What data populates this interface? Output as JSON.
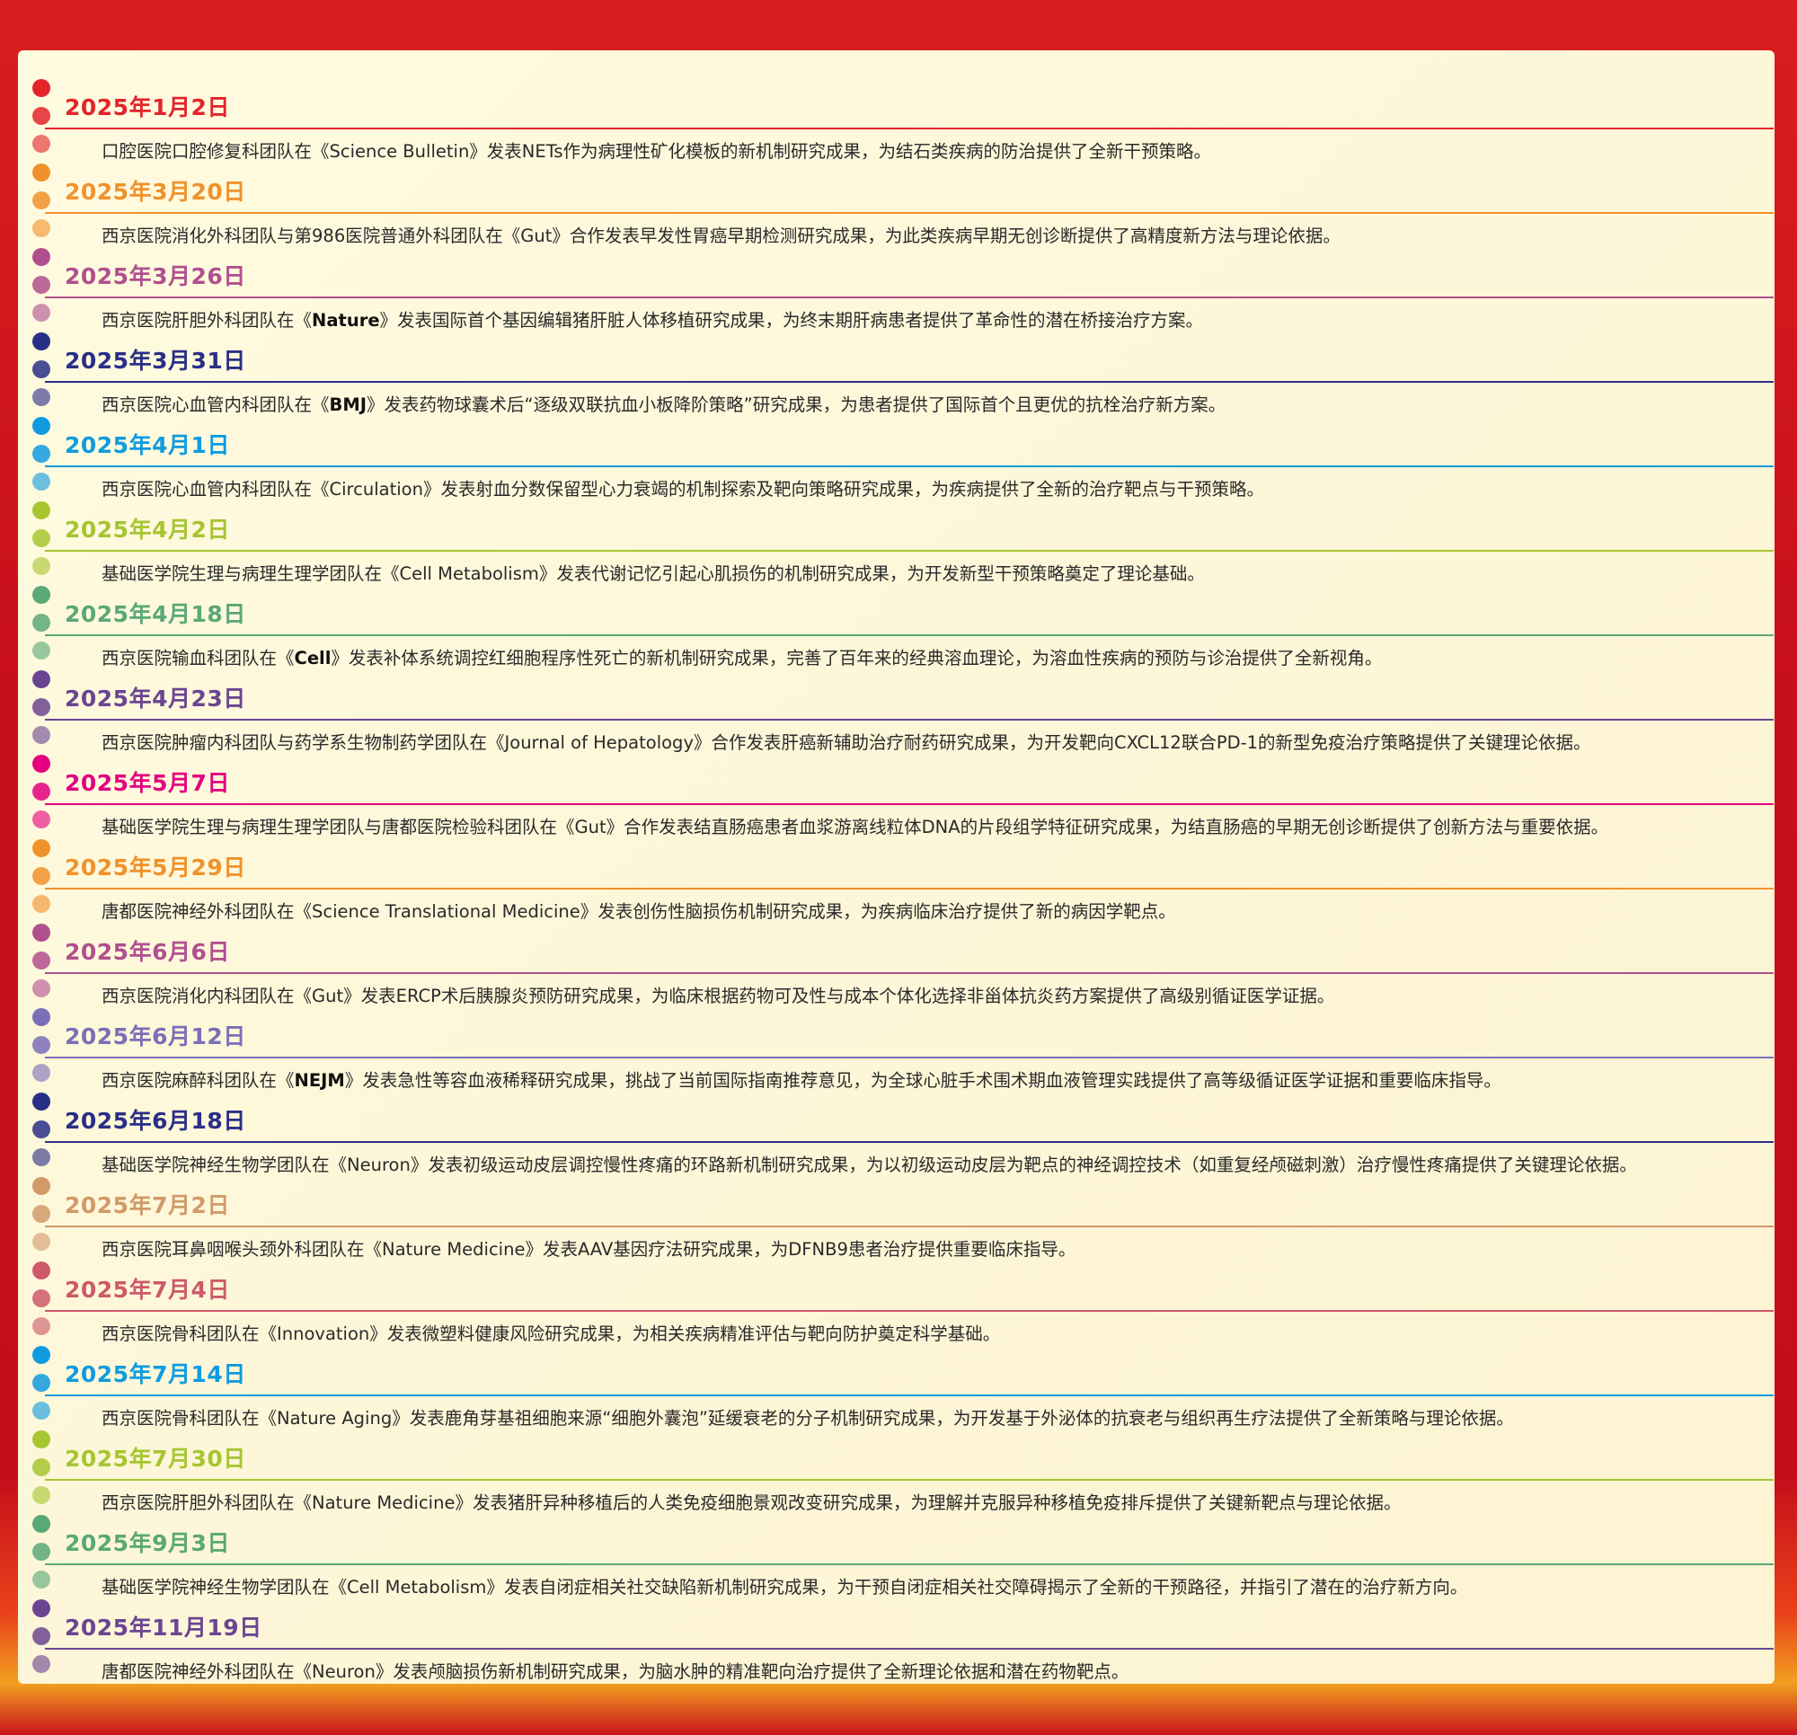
{
  "entries": [
    {
      "date": "2025年1月2日",
      "color": "#e3242b",
      "pre": "口腔医院口腔修复科团队在《",
      "journal": "Science Bulletin",
      "bold": false,
      "post": "》发表NETs作为病理性矿化模板的新机制研究成果，为结石类疾病的防治提供了全新干预策略。"
    },
    {
      "date": "2025年3月20日",
      "color": "#f0922b",
      "pre": "西京医院消化外科团队与第986医院普通外科团队在《",
      "journal": "Gut",
      "bold": false,
      "post": "》合作发表早发性胃癌早期检测研究成果，为此类疾病早期无创诊断提供了高精度新方法与理论依据。"
    },
    {
      "date": "2025年3月26日",
      "color": "#b0508e",
      "pre": "西京医院肝胆外科团队在《",
      "journal": "Nature",
      "bold": true,
      "post": "》发表国际首个基因编辑猪肝脏人体移植研究成果，为终末期肝病患者提供了革命性的潜在桥接治疗方案。"
    },
    {
      "date": "2025年3月31日",
      "color": "#2a2f86",
      "pre": "西京医院心血管内科团队在《",
      "journal": "BMJ",
      "bold": true,
      "post": "》发表药物球囊术后“逐级双联抗血小板降阶策略”研究成果，为患者提供了国际首个且更优的抗栓治疗新方案。"
    },
    {
      "date": "2025年4月1日",
      "color": "#109be0",
      "pre": "西京医院心血管内科团队在《",
      "journal": "Circulation",
      "bold": false,
      "post": "》发表射血分数保留型心力衰竭的机制探索及靶向策略研究成果，为疾病提供了全新的治疗靶点与干预策略。"
    },
    {
      "date": "2025年4月2日",
      "color": "#a6c531",
      "pre": "基础医学院生理与病理生理学团队在《",
      "journal": "Cell Metabolism",
      "bold": false,
      "post": "》发表代谢记忆引起心肌损伤的机制研究成果，为开发新型干预策略奠定了理论基础。"
    },
    {
      "date": "2025年4月18日",
      "color": "#5aa876",
      "pre": "西京医院输血科团队在《",
      "journal": "Cell",
      "bold": true,
      "post": "》发表补体系统调控红细胞程序性死亡的新机制研究成果，完善了百年来的经典溶血理论，为溶血性疾病的预防与诊治提供了全新视角。"
    },
    {
      "date": "2025年4月23日",
      "color": "#6b4591",
      "pre": "西京医院肿瘤内科团队与药学系生物制药学团队在《",
      "journal": "Journal of Hepatology",
      "bold": false,
      "post": "》合作发表肝癌新辅助治疗耐药研究成果，为开发靶向CXCL12联合PD-1的新型免疫治疗策略提供了关键理论依据。"
    },
    {
      "date": "2025年5月7日",
      "color": "#e4007f",
      "pre": "基础医学院生理与病理生理学团队与唐都医院检验科团队在《",
      "journal": "Gut",
      "bold": false,
      "post": "》合作发表结直肠癌患者血浆游离线粒体DNA的片段组学特征研究成果，为结直肠癌的早期无创诊断提供了创新方法与重要依据。"
    },
    {
      "date": "2025年5月29日",
      "color": "#f0922b",
      "pre": "唐都医院神经外科团队在《",
      "journal": "Science Translational Medicine",
      "bold": false,
      "post": "》发表创伤性脑损伤机制研究成果，为疾病临床治疗提供了新的病因学靶点。"
    },
    {
      "date": "2025年6月6日",
      "color": "#b0508e",
      "pre": "西京医院消化内科团队在《",
      "journal": "Gut",
      "bold": false,
      "post": "》发表ERCP术后胰腺炎预防研究成果，为临床根据药物可及性与成本个体化选择非甾体抗炎药方案提供了高级别循证医学证据。"
    },
    {
      "date": "2025年6月12日",
      "color": "#7b6fb8",
      "pre": "西京医院麻醉科团队在《",
      "journal": "NEJM",
      "bold": true,
      "post": "》发表急性等容血液稀释研究成果，挑战了当前国际指南推荐意见，为全球心脏手术围术期血液管理实践提供了高等级循证医学证据和重要临床指导。"
    },
    {
      "date": "2025年6月18日",
      "color": "#2a2f86",
      "pre": "基础医学院神经生物学团队在《",
      "journal": "Neuron",
      "bold": false,
      "post": "》发表初级运动皮层调控慢性疼痛的环路新机制研究成果，为以初级运动皮层为靶点的神经调控技术（如重复经颅磁刺激）治疗慢性疼痛提供了关键理论依据。"
    },
    {
      "date": "2025年7月2日",
      "color": "#d09a6a",
      "pre": "西京医院耳鼻咽喉头颈外科团队在《",
      "journal": "Nature Medicine",
      "bold": false,
      "post": "》发表AAV基因疗法研究成果，为DFNB9患者治疗提供重要临床指导。"
    },
    {
      "date": "2025年7月4日",
      "color": "#cc5a6a",
      "pre": "西京医院骨科团队在《",
      "journal": "Innovation",
      "bold": false,
      "post": "》发表微塑料健康风险研究成果，为相关疾病精准评估与靶向防护奠定科学基础。"
    },
    {
      "date": "2025年7月14日",
      "color": "#109be0",
      "pre": "西京医院骨科团队在《",
      "journal": "Nature Aging",
      "bold": false,
      "post": "》发表鹿角芽基祖细胞来源“细胞外囊泡”延缓衰老的分子机制研究成果，为开发基于外泌体的抗衰老与组织再生疗法提供了全新策略与理论依据。"
    },
    {
      "date": "2025年7月30日",
      "color": "#a6c531",
      "pre": "西京医院肝胆外科团队在《",
      "journal": "Nature Medicine",
      "bold": false,
      "post": "》发表猪肝异种移植后的人类免疫细胞景观改变研究成果，为理解并克服异种移植免疫排斥提供了关键新靶点与理论依据。"
    },
    {
      "date": "2025年9月3日",
      "color": "#5aa876",
      "pre": "基础医学院神经生物学团队在《",
      "journal": "Cell Metabolism",
      "bold": false,
      "post": "》发表自闭症相关社交缺陷新机制研究成果，为干预自闭症相关社交障碍揭示了全新的干预路径，并指引了潜在的治疗新方向。"
    },
    {
      "date": "2025年11月19日",
      "color": "#6b4591",
      "pre": "唐都医院神经外科团队在《",
      "journal": "Neuron",
      "bold": false,
      "post": "》发表颅脑损伤新机制研究成果，为脑水肿的精准靶向治疗提供了全新理论依据和潜在药物靶点。"
    }
  ]
}
